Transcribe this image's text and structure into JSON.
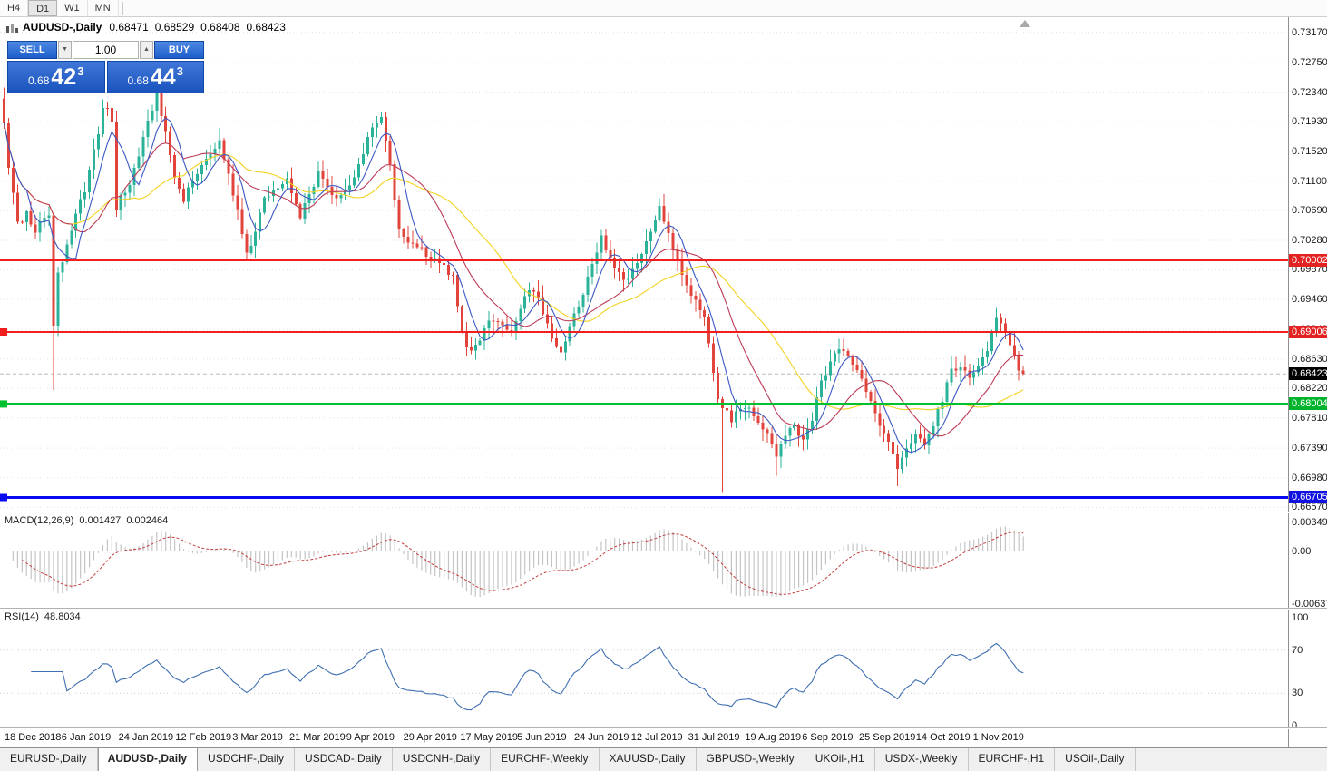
{
  "toolbar": {
    "periods": [
      {
        "label": "H4",
        "active": false
      },
      {
        "label": "D1",
        "active": true
      },
      {
        "label": "W1",
        "active": false
      },
      {
        "label": "MN",
        "active": false
      }
    ]
  },
  "chart": {
    "symbol_title": "AUDUSD-,Daily",
    "ohlc": {
      "open": "0.68471",
      "high": "0.68529",
      "low": "0.68408",
      "close": "0.68423"
    }
  },
  "trade_panel": {
    "sell_label": "SELL",
    "buy_label": "BUY",
    "volume": "1.00",
    "sell_price": {
      "prefix": "0.68",
      "big": "42",
      "pip": "3"
    },
    "buy_price": {
      "prefix": "0.68",
      "big": "44",
      "pip": "3"
    }
  },
  "price_axis": {
    "scale_labels": [
      "0.73170",
      "0.72750",
      "0.72340",
      "0.71930",
      "0.71520",
      "0.71100",
      "0.70690",
      "0.70280",
      "0.69870",
      "0.69460",
      "0.69040",
      "0.68630",
      "0.68220",
      "0.67810",
      "0.67390",
      "0.66980",
      "0.66570"
    ],
    "tags": [
      {
        "text": "0.70002",
        "value": 0.70002,
        "color": "#e32222"
      },
      {
        "text": "0.69006",
        "value": 0.69006,
        "color": "#e32222"
      },
      {
        "text": "0.68423",
        "value": 0.68423,
        "color": "#000000"
      },
      {
        "text": "0.68004",
        "value": 0.68004,
        "color": "#00b32c"
      },
      {
        "text": "0.66705",
        "value": 0.66705,
        "color": "#1212e0"
      }
    ]
  },
  "macd": {
    "label": "MACD(12,26,9)",
    "value_main": "0.001427",
    "value_signal": "0.002464",
    "axis": [
      "0.00349",
      "0.00",
      "-0.00637"
    ]
  },
  "rsi": {
    "label": "RSI(14)",
    "value": "48.8034",
    "axis": [
      "100",
      "70",
      "30",
      "0"
    ]
  },
  "dates": [
    "18 Dec 2018",
    "6 Jan 2019",
    "24 Jan 2019",
    "12 Feb 2019",
    "3 Mar 2019",
    "21 Mar 2019",
    "9 Apr 2019",
    "29 Apr 2019",
    "17 May 2019",
    "5 Jun 2019",
    "24 Jun 2019",
    "12 Jul 2019",
    "31 Jul 2019",
    "19 Aug 2019",
    "6 Sep 2019",
    "25 Sep 2019",
    "14 Oct 2019",
    "1 Nov 2019"
  ],
  "tabs": [
    {
      "label": "EURUSD-,Daily",
      "active": false
    },
    {
      "label": "AUDUSD-,Daily",
      "active": true
    },
    {
      "label": "USDCHF-,Daily",
      "active": false
    },
    {
      "label": "USDCAD-,Daily",
      "active": false
    },
    {
      "label": "USDCNH-,Daily",
      "active": false
    },
    {
      "label": "EURCHF-,Weekly",
      "active": false
    },
    {
      "label": "XAUUSD-,Daily",
      "active": false
    },
    {
      "label": "GBPUSD-,Weekly",
      "active": false
    },
    {
      "label": "UKOil-,H1",
      "active": false
    },
    {
      "label": "USDX-,Weekly",
      "active": false
    },
    {
      "label": "EURCHF-,H1",
      "active": false
    },
    {
      "label": "USOil-,Daily",
      "active": false
    }
  ],
  "chart_data": {
    "type": "candlestick",
    "symbol": "AUDUSD-",
    "timeframe": "Daily",
    "title": "AUDUSD-,Daily",
    "current_ohlc": {
      "open": 0.68471,
      "high": 0.68529,
      "low": 0.68408,
      "close": 0.68423
    },
    "bid": 0.68423,
    "ask": 0.68443,
    "y_axis": {
      "min": 0.66522,
      "max": 0.7332,
      "tick_labels": [
        "0.73170",
        "0.72750",
        "0.72340",
        "0.71930",
        "0.71520",
        "0.71100",
        "0.70690",
        "0.70280",
        "0.69870",
        "0.69460",
        "0.69040",
        "0.68630",
        "0.68220",
        "0.67810",
        "0.67390",
        "0.66980",
        "0.66570"
      ]
    },
    "x_tick_labels": [
      "18 Dec 2018",
      "6 Jan 2019",
      "24 Jan 2019",
      "12 Feb 2019",
      "3 Mar 2019",
      "21 Mar 2019",
      "9 Apr 2019",
      "29 Apr 2019",
      "17 May 2019",
      "5 Jun 2019",
      "24 Jun 2019",
      "12 Jul 2019",
      "31 Jul 2019",
      "19 Aug 2019",
      "6 Sep 2019",
      "25 Sep 2019",
      "14 Oct 2019",
      "1 Nov 2019"
    ],
    "horizontal_levels": [
      {
        "value": 0.70002,
        "color": "#f21d1d",
        "width": 2,
        "marker": false
      },
      {
        "value": 0.69006,
        "color": "#f21d1d",
        "width": 2,
        "marker": true
      },
      {
        "value": 0.68004,
        "color": "#00c030",
        "width": 3,
        "marker": true
      },
      {
        "value": 0.66705,
        "color": "#0a0af0",
        "width": 3,
        "marker": true
      }
    ],
    "moving_averages": [
      {
        "color": "#3b57c4",
        "period": 6
      },
      {
        "color": "#bd3a55",
        "period": 16
      },
      {
        "color": "#f2d21f",
        "period": 30
      }
    ],
    "candle_colors": {
      "up": "#2bb39a",
      "down": "#e2443c"
    },
    "num_candles": 228,
    "price_path_anchors": [
      [
        0,
        0.7195
      ],
      [
        1,
        0.713
      ],
      [
        3,
        0.7052
      ],
      [
        5,
        0.7065
      ],
      [
        7,
        0.7042
      ],
      [
        9,
        0.706
      ],
      [
        10,
        0.7066
      ],
      [
        11,
        0.6912
      ],
      [
        12,
        0.698
      ],
      [
        14,
        0.7022
      ],
      [
        16,
        0.706
      ],
      [
        18,
        0.71
      ],
      [
        20,
        0.715
      ],
      [
        22,
        0.721
      ],
      [
        23,
        0.7215
      ],
      [
        24,
        0.719
      ],
      [
        25,
        0.7068
      ],
      [
        26,
        0.7092
      ],
      [
        28,
        0.7106
      ],
      [
        30,
        0.7145
      ],
      [
        32,
        0.719
      ],
      [
        34,
        0.7228
      ],
      [
        35,
        0.7205
      ],
      [
        36,
        0.7175
      ],
      [
        38,
        0.712
      ],
      [
        40,
        0.7086
      ],
      [
        42,
        0.711
      ],
      [
        44,
        0.713
      ],
      [
        46,
        0.715
      ],
      [
        48,
        0.7164
      ],
      [
        50,
        0.712
      ],
      [
        52,
        0.707
      ],
      [
        54,
        0.7006
      ],
      [
        56,
        0.704
      ],
      [
        58,
        0.7086
      ],
      [
        60,
        0.71
      ],
      [
        63,
        0.7116
      ],
      [
        66,
        0.7062
      ],
      [
        68,
        0.709
      ],
      [
        70,
        0.7122
      ],
      [
        72,
        0.71
      ],
      [
        74,
        0.7086
      ],
      [
        76,
        0.71
      ],
      [
        78,
        0.7112
      ],
      [
        80,
        0.715
      ],
      [
        82,
        0.7188
      ],
      [
        84,
        0.72
      ],
      [
        85,
        0.7165
      ],
      [
        86,
        0.713
      ],
      [
        87,
        0.7085
      ],
      [
        88,
        0.7045
      ],
      [
        90,
        0.703
      ],
      [
        92,
        0.7018
      ],
      [
        94,
        0.7008
      ],
      [
        96,
        0.7003
      ],
      [
        98,
        0.6995
      ],
      [
        100,
        0.6975
      ],
      [
        102,
        0.6905
      ],
      [
        103,
        0.6878
      ],
      [
        105,
        0.6882
      ],
      [
        107,
        0.6905
      ],
      [
        109,
        0.692
      ],
      [
        111,
        0.6912
      ],
      [
        113,
        0.69
      ],
      [
        115,
        0.6938
      ],
      [
        117,
        0.6962
      ],
      [
        119,
        0.695
      ],
      [
        120,
        0.693
      ],
      [
        122,
        0.6895
      ],
      [
        124,
        0.687
      ],
      [
        126,
        0.6905
      ],
      [
        128,
        0.694
      ],
      [
        130,
        0.6975
      ],
      [
        132,
        0.7012
      ],
      [
        133,
        0.703
      ],
      [
        135,
        0.7005
      ],
      [
        136,
        0.6988
      ],
      [
        138,
        0.697
      ],
      [
        140,
        0.6985
      ],
      [
        142,
        0.701
      ],
      [
        144,
        0.7045
      ],
      [
        146,
        0.7072
      ],
      [
        147,
        0.705
      ],
      [
        148,
        0.7035
      ],
      [
        150,
        0.7
      ],
      [
        152,
        0.6968
      ],
      [
        154,
        0.6945
      ],
      [
        156,
        0.692
      ],
      [
        157,
        0.6886
      ],
      [
        159,
        0.6812
      ],
      [
        160,
        0.6796
      ],
      [
        162,
        0.678
      ],
      [
        164,
        0.6796
      ],
      [
        166,
        0.679
      ],
      [
        168,
        0.6775
      ],
      [
        170,
        0.6755
      ],
      [
        172,
        0.6726
      ],
      [
        174,
        0.6755
      ],
      [
        176,
        0.6768
      ],
      [
        178,
        0.6746
      ],
      [
        180,
        0.678
      ],
      [
        182,
        0.683
      ],
      [
        184,
        0.6858
      ],
      [
        186,
        0.688
      ],
      [
        188,
        0.687
      ],
      [
        190,
        0.6845
      ],
      [
        192,
        0.682
      ],
      [
        194,
        0.6786
      ],
      [
        196,
        0.676
      ],
      [
        198,
        0.673
      ],
      [
        199,
        0.6712
      ],
      [
        201,
        0.674
      ],
      [
        203,
        0.6758
      ],
      [
        205,
        0.6748
      ],
      [
        207,
        0.6772
      ],
      [
        209,
        0.6808
      ],
      [
        211,
        0.6845
      ],
      [
        213,
        0.6856
      ],
      [
        215,
        0.6838
      ],
      [
        217,
        0.6852
      ],
      [
        219,
        0.6878
      ],
      [
        221,
        0.6925
      ],
      [
        222,
        0.691
      ],
      [
        223,
        0.6896
      ],
      [
        224,
        0.6886
      ],
      [
        226,
        0.6847
      ],
      [
        227,
        0.68423
      ]
    ],
    "special_lows": [
      [
        11,
        0.682
      ],
      [
        124,
        0.6834
      ],
      [
        160,
        0.6678
      ],
      [
        172,
        0.6701
      ],
      [
        199,
        0.6686
      ]
    ],
    "special_highs": [
      [
        34,
        0.7242
      ],
      [
        221,
        0.6934
      ]
    ],
    "indicators": [
      {
        "name": "MACD",
        "params": [
          12,
          26,
          9
        ],
        "values": [
          0.001427,
          0.002464
        ],
        "axis_labels": [
          "0.00349",
          "0.00",
          "-0.00637"
        ],
        "axis_max": 0.00349,
        "axis_min": -0.00637,
        "histogram_color": "#c4c4c4",
        "signal_color": "#c23b3b"
      },
      {
        "name": "RSI",
        "params": [
          14
        ],
        "value": 48.8034,
        "axis_labels": [
          "100",
          "70",
          "30",
          "0"
        ],
        "levels": [
          70,
          30
        ],
        "line_color": "#3e6fb0"
      }
    ]
  }
}
